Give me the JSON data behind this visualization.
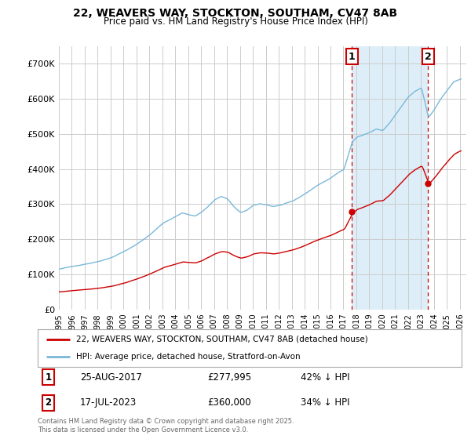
{
  "title": "22, WEAVERS WAY, STOCKTON, SOUTHAM, CV47 8AB",
  "subtitle": "Price paid vs. HM Land Registry's House Price Index (HPI)",
  "hpi_color": "#7ab8d9",
  "price_color": "#cc0000",
  "marker_color": "#cc0000",
  "vline_color": "#cc0000",
  "shade_color": "#ddeef8",
  "background_color": "#ffffff",
  "grid_color": "#cccccc",
  "ylim": [
    0,
    750000
  ],
  "xlim_start": 1995.0,
  "xlim_end": 2026.5,
  "yticks": [
    0,
    100000,
    200000,
    300000,
    400000,
    500000,
    600000,
    700000
  ],
  "ytick_labels": [
    "£0",
    "£100K",
    "£200K",
    "£300K",
    "£400K",
    "£500K",
    "£600K",
    "£700K"
  ],
  "sale1_x": 2017.646,
  "sale1_y": 277995,
  "sale2_x": 2023.538,
  "sale2_y": 360000,
  "legend_line1": "22, WEAVERS WAY, STOCKTON, SOUTHAM, CV47 8AB (detached house)",
  "legend_line2": "HPI: Average price, detached house, Stratford-on-Avon",
  "annotation1_num": "1",
  "annotation1_date": "25-AUG-2017",
  "annotation1_price": "£277,995",
  "annotation1_hpi": "42% ↓ HPI",
  "annotation2_num": "2",
  "annotation2_date": "17-JUL-2023",
  "annotation2_price": "£360,000",
  "annotation2_hpi": "34% ↓ HPI",
  "footer": "Contains HM Land Registry data © Crown copyright and database right 2025.\nThis data is licensed under the Open Government Licence v3.0."
}
